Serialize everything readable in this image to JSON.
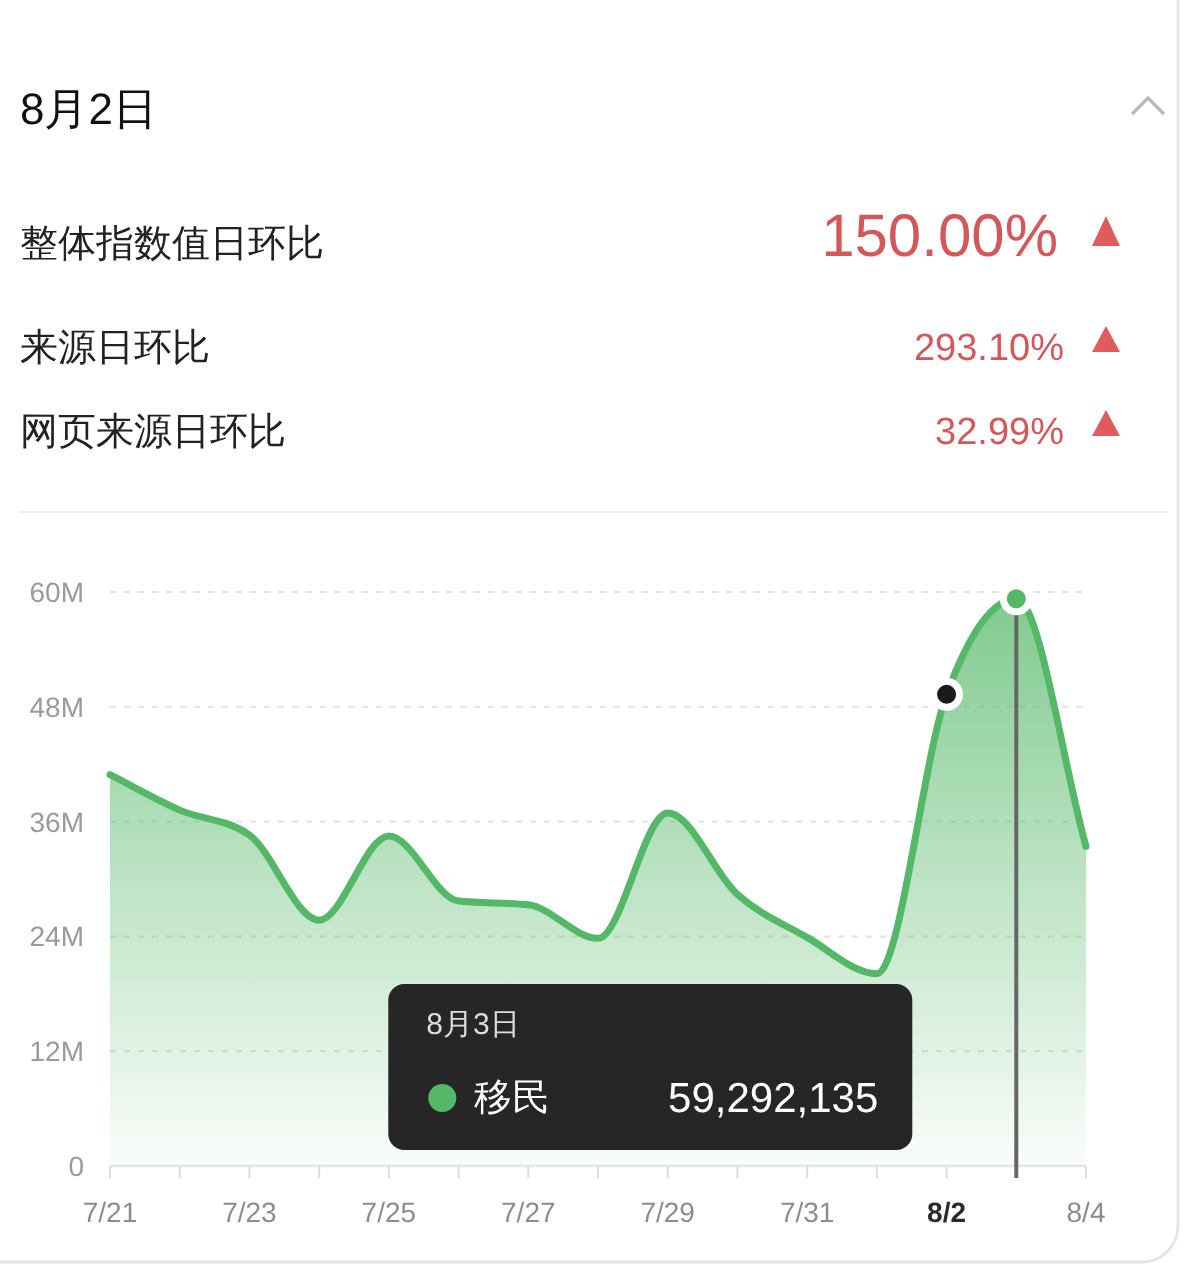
{
  "chart_data": [
    {
      "type": "other",
      "title": "8月2日",
      "annotations": [
        "整体指数值日环比",
        "150.00%",
        "来源日环比",
        "293.10%",
        "网页来源日环比",
        "32.99%"
      ]
    },
    {
      "type": "area",
      "x": [
        "--07-21",
        "--07-22",
        "--07-23",
        "--07-24",
        "--07-25",
        "--07-26",
        "--07-27",
        "--07-28",
        "--07-29",
        "--07-30",
        "--07-31",
        "--08-01",
        "--08-02",
        "--08-03",
        "--08-04"
      ],
      "xlim": [
        "--07-21",
        "--08-04"
      ],
      "xticks": [
        {
          "value": "--07-21",
          "label": "7/21"
        },
        {
          "value": "--07-22",
          "label": null
        },
        {
          "value": "--07-23",
          "label": "7/23"
        },
        {
          "value": "--07-24",
          "label": null
        },
        {
          "value": "--07-25",
          "label": "7/25"
        },
        {
          "value": "--07-26",
          "label": null
        },
        {
          "value": "--07-27",
          "label": "7/27"
        },
        {
          "value": "--07-28",
          "label": null
        },
        {
          "value": "--07-29",
          "label": "7/29"
        },
        {
          "value": "--07-30",
          "label": null
        },
        {
          "value": "--07-31",
          "label": "7/31"
        },
        {
          "value": "--08-01",
          "label": null
        },
        {
          "value": "--08-02",
          "label": "**8/2**"
        },
        {
          "value": "--08-03",
          "label": null
        },
        {
          "value": "--08-04",
          "label": "8/4"
        }
      ],
      "ylim": [
        0,
        60000000
      ],
      "yticks": [
        0,
        {
          "value": 12000000,
          "label": "12M"
        },
        {
          "value": 24000000,
          "label": "24M"
        },
        {
          "value": 36000000,
          "label": "36M"
        },
        {
          "value": 48000000,
          "label": "48M"
        },
        {
          "value": 60000000,
          "label": "60M"
        }
      ],
      "grid": "y",
      "series": [
        {
          "name": "移民",
          "color": "#55b868",
          "values": [
            40900000,
            37200000,
            34600000,
            25700000,
            34500000,
            27700000,
            27300000,
            23800000,
            36900000,
            28400000,
            23900000,
            20100000,
            49300000,
            59292135,
            33400000
          ]
        },
        {
          "type": "scatter",
          "x": [
            "--08-02"
          ],
          "color": "#1a1a1a",
          "values": [
            49300000
          ]
        },
        {
          "type": "scatter",
          "x": [
            "--08-03"
          ],
          "color": "#55b868",
          "values": [
            59292135
          ]
        }
      ],
      "ref_lines": [
        {
          "axis": "x",
          "value": "--08-03",
          "color": "#666666"
        }
      ],
      "annotations": [
        "8月3日",
        "59,292,135"
      ]
    }
  ]
}
